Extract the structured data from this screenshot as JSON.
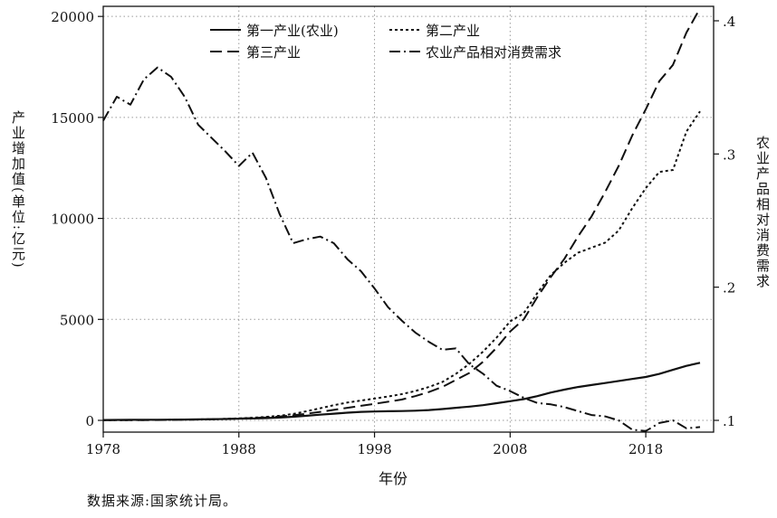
{
  "chart_data": {
    "type": "line",
    "xlabel": "年份",
    "ylabel": "产业增加值(单位:亿元)",
    "y2label": "农业产品相对消费需求",
    "x_ticks": [
      1978,
      1988,
      1998,
      2008,
      2018
    ],
    "xlim": [
      1978,
      2023
    ],
    "ylim": [
      0,
      20500
    ],
    "y_ticks": [
      0,
      5000,
      10000,
      15000,
      20000
    ],
    "y2lim": [
      0.0884,
      0.4018
    ],
    "y2_ticks": [
      0.1,
      0.2,
      0.3,
      0.4
    ],
    "y2_tick_labels": [
      ".1",
      ".2",
      ".3",
      ".4"
    ],
    "grid": true,
    "legend_position": "top-center",
    "x": [
      1978,
      1979,
      1980,
      1981,
      1982,
      1983,
      1984,
      1985,
      1986,
      1987,
      1988,
      1989,
      1990,
      1991,
      1992,
      1993,
      1994,
      1995,
      1996,
      1997,
      1998,
      1999,
      2000,
      2001,
      2002,
      2003,
      2004,
      2005,
      2006,
      2007,
      2008,
      2009,
      2010,
      2011,
      2012,
      2013,
      2014,
      2015,
      2016,
      2017,
      2018,
      2019,
      2020,
      2021,
      2022
    ],
    "series": [
      {
        "name": "第一产业(农业)",
        "axis": "left",
        "style": "solid",
        "values": [
          20,
          22,
          25,
          28,
          32,
          36,
          42,
          48,
          56,
          66,
          80,
          95,
          110,
          140,
          180,
          230,
          280,
          330,
          380,
          420,
          440,
          450,
          460,
          480,
          510,
          560,
          620,
          680,
          750,
          850,
          950,
          1050,
          1200,
          1380,
          1520,
          1650,
          1750,
          1850,
          1950,
          2050,
          2150,
          2300,
          2500,
          2700,
          2850
        ]
      },
      {
        "name": "第二产业",
        "axis": "left",
        "style": "dotted",
        "values": [
          10,
          12,
          15,
          18,
          22,
          28,
          36,
          46,
          58,
          75,
          100,
          130,
          170,
          230,
          320,
          450,
          600,
          750,
          880,
          980,
          1080,
          1180,
          1300,
          1450,
          1650,
          1900,
          2300,
          2800,
          3400,
          4100,
          4900,
          5300,
          6300,
          7200,
          7800,
          8300,
          8550,
          8800,
          9400,
          10500,
          11500,
          12300,
          12400,
          14300,
          15300
        ]
      },
      {
        "name": "第三产业",
        "axis": "left",
        "style": "dashed",
        "values": [
          8,
          10,
          12,
          15,
          19,
          24,
          31,
          40,
          52,
          68,
          90,
          115,
          145,
          190,
          250,
          330,
          420,
          520,
          620,
          720,
          820,
          920,
          1030,
          1200,
          1400,
          1650,
          2000,
          2350,
          2900,
          3600,
          4400,
          5000,
          6100,
          7100,
          8000,
          9100,
          10100,
          11300,
          12600,
          14100,
          15400,
          16800,
          17600,
          19200,
          20400
        ]
      },
      {
        "name": "农业产品相对消费需求",
        "axis": "right",
        "style": "dashdot",
        "values": [
          0.325,
          0.343,
          0.337,
          0.356,
          0.365,
          0.358,
          0.343,
          0.322,
          0.312,
          0.302,
          0.291,
          0.301,
          0.282,
          0.255,
          0.233,
          0.236,
          0.238,
          0.233,
          0.221,
          0.212,
          0.199,
          0.185,
          0.175,
          0.166,
          0.159,
          0.153,
          0.154,
          0.142,
          0.135,
          0.126,
          0.122,
          0.117,
          0.113,
          0.112,
          0.11,
          0.107,
          0.104,
          0.103,
          0.1,
          0.093,
          0.092,
          0.098,
          0.1,
          0.094,
          0.095
        ]
      }
    ]
  },
  "source_note": "数据来源:国家统计局。"
}
